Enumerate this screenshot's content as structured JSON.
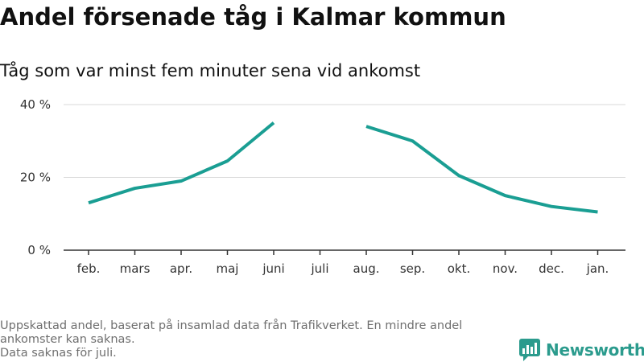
{
  "header": {
    "title": "Andel försenade tåg i Kalmar kommun",
    "subtitle": "Tåg som var minst fem minuter sena vid ankomst"
  },
  "chart_data": {
    "type": "line",
    "title": "Andel försenade tåg i Kalmar kommun",
    "subtitle": "Tåg som var minst fem minuter sena vid ankomst",
    "categories": [
      "feb.",
      "mars",
      "apr.",
      "maj",
      "juni",
      "juli",
      "aug.",
      "sep.",
      "okt.",
      "nov.",
      "dec.",
      "jan."
    ],
    "series": [
      {
        "values": [
          13,
          17,
          19,
          24.5,
          35,
          null,
          34,
          30,
          20.5,
          15,
          12,
          10.5
        ],
        "color": "#1a9e93"
      }
    ],
    "yticks": [
      {
        "value": 0,
        "label": "0 %"
      },
      {
        "value": 20,
        "label": "20 %"
      },
      {
        "value": 40,
        "label": "40 %"
      }
    ],
    "ylim": [
      0,
      40
    ],
    "grid": true,
    "xlabel": "",
    "ylabel": ""
  },
  "footer": {
    "note1": "Uppskattad andel, baserat på insamlad data från Trafikverket. En mindre andel ankomster kan saknas.",
    "note2": "Data saknas för juli."
  },
  "brand": {
    "name": "Newsworthy",
    "logo_icon": "newsworthy-logo-icon",
    "color": "#2b9b8d"
  }
}
